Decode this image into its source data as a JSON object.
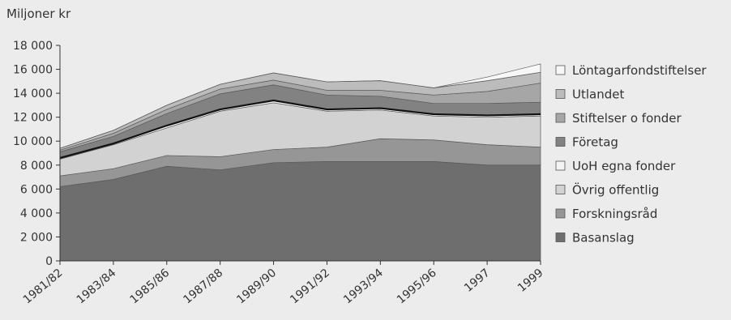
{
  "chart_data": {
    "type": "area",
    "ylabel": "Miljoner kr",
    "ylim": [
      0,
      18000
    ],
    "yticks": [
      "0",
      "2 000",
      "4 000",
      "6 000",
      "8 000",
      "10 000",
      "12 000",
      "14 000",
      "16 000",
      "18 000"
    ],
    "categories": [
      "1981/82",
      "1983/84",
      "1985/86",
      "1987/88",
      "1989/90",
      "1991/92",
      "1993/94",
      "1995/96",
      "1997",
      "1999"
    ],
    "legend_position": "right",
    "grid": false,
    "series": [
      {
        "name": "Basanslag",
        "color": "#6e6e6e",
        "values": [
          6200,
          6800,
          7900,
          7600,
          8200,
          8300,
          8300,
          8300,
          8000,
          8000
        ]
      },
      {
        "name": "Forskningsråd",
        "color": "#969696",
        "values": [
          900,
          900,
          900,
          1100,
          1100,
          1200,
          1900,
          1800,
          1700,
          1500
        ]
      },
      {
        "name": "Övrig offentlig",
        "color": "#d2d2d2",
        "values": [
          1400,
          2000,
          2300,
          3800,
          3900,
          3000,
          2400,
          2000,
          2300,
          2600
        ]
      },
      {
        "name": "UoH egna fonder",
        "color": "#f4f4f4",
        "values": [
          100,
          100,
          200,
          150,
          200,
          150,
          150,
          150,
          150,
          150
        ]
      },
      {
        "name": "Företag",
        "color": "#828282",
        "values": [
          500,
          600,
          1000,
          1300,
          1300,
          1200,
          1000,
          900,
          1000,
          1000
        ]
      },
      {
        "name": "Stiftelser o fonder",
        "color": "#a6a6a6",
        "values": [
          150,
          250,
          350,
          400,
          400,
          400,
          500,
          700,
          1000,
          1600
        ]
      },
      {
        "name": "Utlandet",
        "color": "#bcbcbc",
        "values": [
          150,
          250,
          350,
          400,
          600,
          700,
          800,
          600,
          900,
          900
        ]
      },
      {
        "name": "Löntagarfondstiftelser",
        "color": "#f7f7f7",
        "values": [
          0,
          0,
          0,
          0,
          0,
          0,
          0,
          0,
          300,
          700
        ]
      }
    ]
  }
}
